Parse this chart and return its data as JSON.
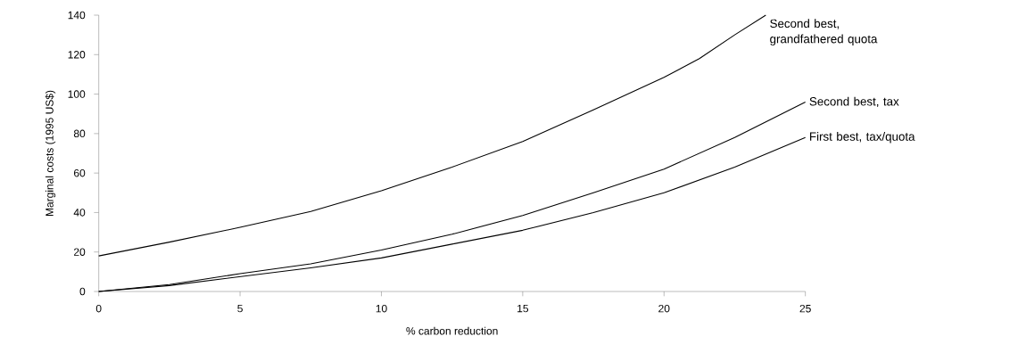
{
  "chart_data": {
    "type": "line",
    "xlabel": "% carbon reduction",
    "ylabel": "Marginal costs (1995 US$)",
    "xlim": [
      0,
      25
    ],
    "ylim": [
      0,
      140
    ],
    "xticks": [
      0,
      5,
      10,
      15,
      20,
      25
    ],
    "yticks": [
      0,
      20,
      40,
      60,
      80,
      100,
      120,
      140
    ],
    "grid": false,
    "legend": false,
    "marker": "none",
    "line_style": "solid",
    "series": [
      {
        "name": "Second best, grandfathered quota",
        "color": "#000000",
        "x": [
          0,
          2.5,
          5,
          7.5,
          10,
          12.5,
          15,
          17.5,
          20,
          21.25,
          22.5,
          23.6
        ],
        "values": [
          18,
          25,
          32.5,
          40.5,
          51,
          63,
          76,
          92,
          108.5,
          118,
          130,
          140
        ]
      },
      {
        "name": "Second best, tax",
        "color": "#000000",
        "x": [
          0,
          2.5,
          5,
          7.5,
          10,
          12.5,
          15,
          17.5,
          20,
          22.5,
          25
        ],
        "values": [
          0,
          3.5,
          9,
          14,
          21,
          29,
          38.5,
          50,
          62,
          78,
          96
        ]
      },
      {
        "name": "First best, tax/quota",
        "color": "#000000",
        "x": [
          0,
          2.5,
          5,
          7.5,
          10,
          12.5,
          15,
          17.5,
          20,
          22.5,
          25
        ],
        "values": [
          0,
          3,
          7.5,
          12,
          17,
          24,
          31,
          40,
          50,
          63,
          78
        ]
      }
    ]
  }
}
